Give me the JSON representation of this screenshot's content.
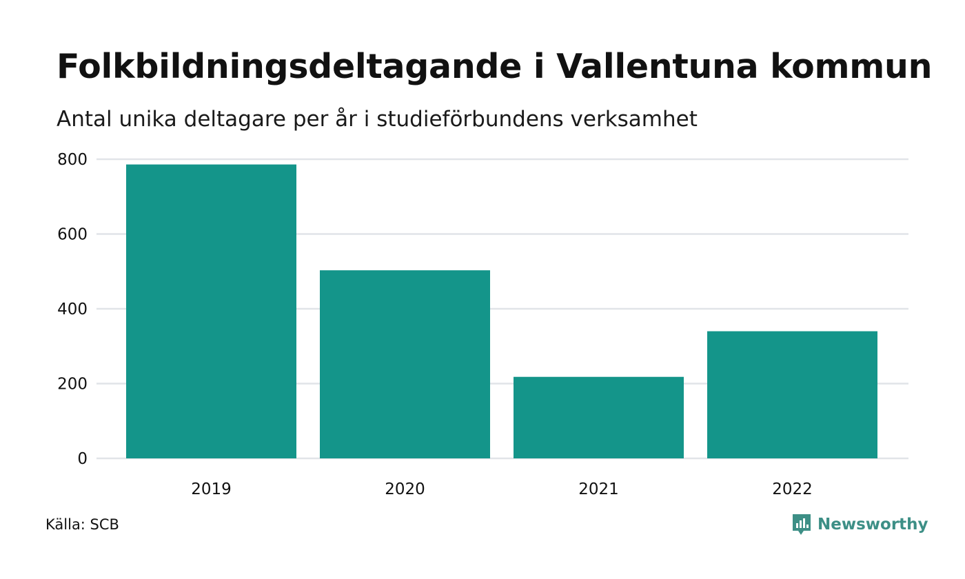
{
  "header": {
    "title": "Folkbildningsdeltagande i Vallentuna kommun",
    "subtitle": "Antal unika deltagare per år i studieförbundens verksamhet"
  },
  "footer": {
    "source": "Källa: SCB",
    "brand": "Newsworthy",
    "brand_icon": "bar-chart-speech-bubble-icon"
  },
  "colors": {
    "bar": "#14958a",
    "grid": "#e1e4e8",
    "brand": "#3d8f86"
  },
  "chart_data": {
    "type": "bar",
    "title": "Folkbildningsdeltagande i Vallentuna kommun",
    "subtitle": "Antal unika deltagare per år i studieförbundens verksamhet",
    "xlabel": "",
    "ylabel": "",
    "categories": [
      "2019",
      "2020",
      "2021",
      "2022"
    ],
    "values": [
      786,
      503,
      218,
      340
    ],
    "ylim": [
      0,
      800
    ],
    "yticks": [
      0,
      200,
      400,
      600,
      800
    ],
    "ytick_labels": [
      "0",
      "200",
      "400",
      "600",
      "800"
    ],
    "grid": true,
    "legend": "none"
  }
}
